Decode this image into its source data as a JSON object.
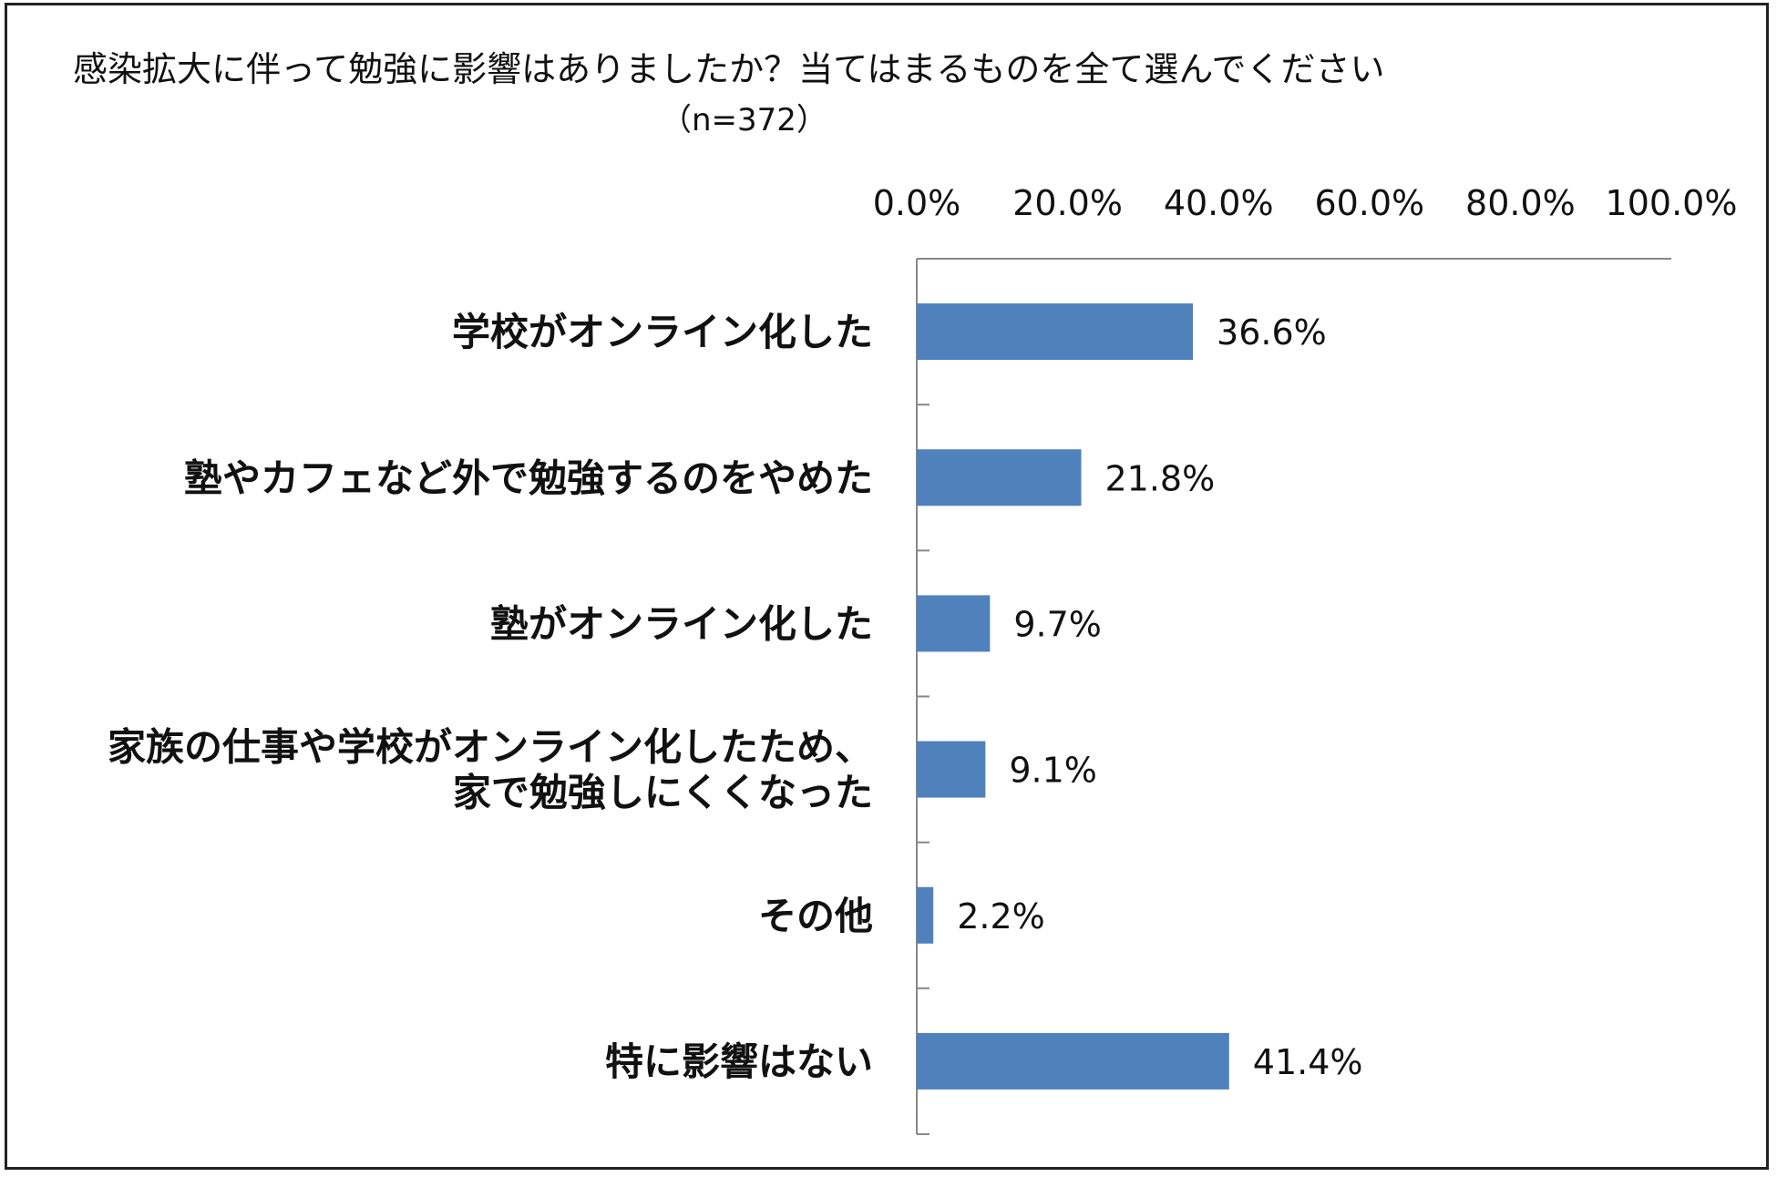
{
  "title": "感染拡大に伴って勉強に影響はありましたか？当てはまるものを全て選んでください",
  "subtitle": "（n=372）",
  "chart_data": {
    "type": "bar",
    "orientation": "horizontal",
    "categories": [
      [
        "学校がオンライン化した"
      ],
      [
        "塾やカフェなど外で勉強するのをやめた"
      ],
      [
        "塾がオンライン化した"
      ],
      [
        "家族の仕事や学校がオンライン化したため、",
        "家で勉強しにくくなった"
      ],
      [
        "その他"
      ],
      [
        "特に影響はない"
      ]
    ],
    "values": [
      36.6,
      21.8,
      9.7,
      9.1,
      2.2,
      41.4
    ],
    "value_labels": [
      "36.6%",
      "21.8%",
      "9.7%",
      "9.1%",
      "2.2%",
      "41.4%"
    ],
    "xlim": [
      0,
      100
    ],
    "x_ticks": [
      0,
      20,
      40,
      60,
      80,
      100
    ],
    "x_tick_labels": [
      "0.0%",
      "20.0%",
      "40.0%",
      "60.0%",
      "80.0%",
      "100.0%"
    ],
    "x_axis_position": "top",
    "grid": false,
    "bar_color": "#4f81bd"
  }
}
